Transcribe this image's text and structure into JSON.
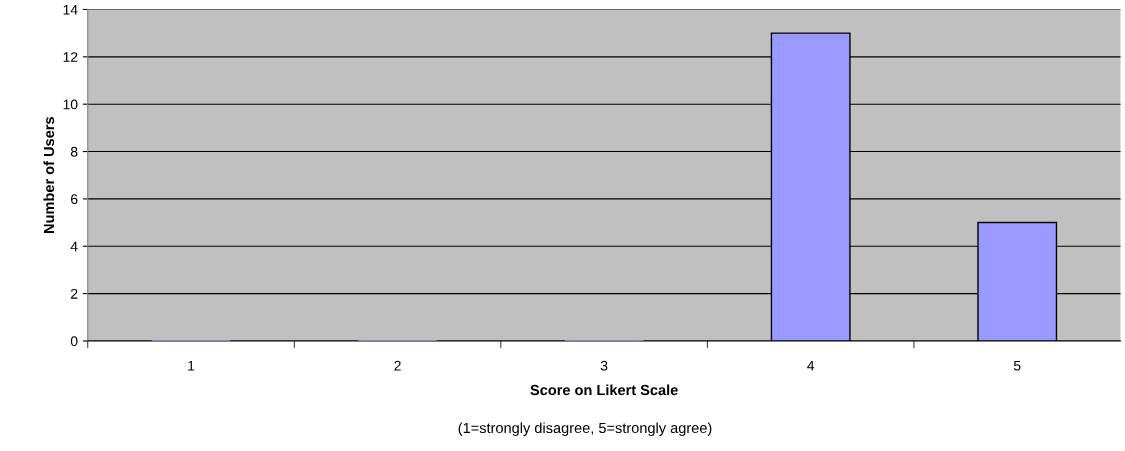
{
  "chart_data": {
    "type": "bar",
    "categories": [
      "1",
      "2",
      "3",
      "4",
      "5"
    ],
    "values": [
      0,
      0,
      0,
      13,
      5
    ],
    "color": "#9999ff",
    "xlabel": "Score on Likert Scale",
    "ylabel": "Number of Users",
    "annotations": [
      "(1=strongly disagree, 5=strongly agree)"
    ],
    "ylim": [
      0,
      14
    ],
    "yticks": [
      0,
      2,
      4,
      6,
      8,
      10,
      12,
      14
    ],
    "grid": "y",
    "legend": false
  }
}
